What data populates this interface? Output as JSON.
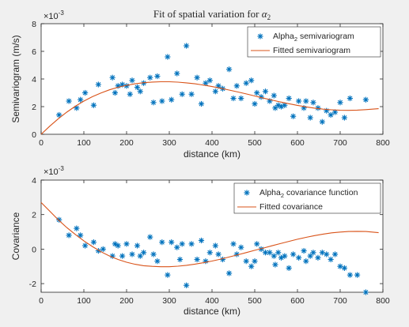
{
  "figure": {
    "background": "#f0f0f0",
    "axes_background": "#ffffff"
  },
  "chart_data": [
    {
      "type": "scatter",
      "title_prefix": "Fit of spatial variation for ",
      "title_symbol": "α",
      "title_subscript": "2",
      "xlabel": "distance (km)",
      "ylabel": "Semivariogram (m/s)",
      "exponent_prefix": "×10",
      "exponent_power": "-3",
      "xlim": [
        0,
        800
      ],
      "ylim": [
        0,
        8
      ],
      "xticks": [
        "0",
        "100",
        "200",
        "300",
        "400",
        "500",
        "600",
        "700",
        "800"
      ],
      "yticks": [
        "0",
        "2",
        "4",
        "6",
        "8"
      ],
      "legend_location": "top-right",
      "series": [
        {
          "name": "Alpha",
          "name_subscript": "2",
          "name_suffix": " semivariogram",
          "kind": "markers",
          "marker": "asterisk",
          "color": "#0072bd",
          "points": [
            [
              42,
              1.4
            ],
            [
              65,
              2.4
            ],
            [
              83,
              1.9
            ],
            [
              92,
              2.5
            ],
            [
              103,
              3.0
            ],
            [
              123,
              2.1
            ],
            [
              134,
              3.6
            ],
            [
              167,
              4.1
            ],
            [
              173,
              3.0
            ],
            [
              180,
              3.5
            ],
            [
              190,
              3.6
            ],
            [
              200,
              3.5
            ],
            [
              208,
              2.9
            ],
            [
              213,
              3.9
            ],
            [
              225,
              3.4
            ],
            [
              232,
              3.1
            ],
            [
              240,
              3.7
            ],
            [
              255,
              4.1
            ],
            [
              263,
              2.3
            ],
            [
              272,
              4.2
            ],
            [
              283,
              2.4
            ],
            [
              296,
              5.6
            ],
            [
              305,
              2.5
            ],
            [
              318,
              4.4
            ],
            [
              330,
              2.9
            ],
            [
              340,
              6.4
            ],
            [
              352,
              2.9
            ],
            [
              365,
              4.1
            ],
            [
              375,
              2.2
            ],
            [
              385,
              3.7
            ],
            [
              395,
              3.9
            ],
            [
              408,
              3.1
            ],
            [
              415,
              3.5
            ],
            [
              425,
              3.3
            ],
            [
              440,
              4.7
            ],
            [
              450,
              2.6
            ],
            [
              458,
              3.5
            ],
            [
              468,
              2.6
            ],
            [
              480,
              3.7
            ],
            [
              492,
              3.9
            ],
            [
              500,
              2.2
            ],
            [
              505,
              3.0
            ],
            [
              515,
              2.7
            ],
            [
              525,
              3.1
            ],
            [
              535,
              2.4
            ],
            [
              545,
              2.8
            ],
            [
              548,
              1.9
            ],
            [
              555,
              2.1
            ],
            [
              562,
              2.0
            ],
            [
              570,
              2.1
            ],
            [
              580,
              2.6
            ],
            [
              590,
              1.3
            ],
            [
              603,
              2.4
            ],
            [
              615,
              1.9
            ],
            [
              620,
              2.4
            ],
            [
              630,
              1.2
            ],
            [
              637,
              2.3
            ],
            [
              648,
              1.9
            ],
            [
              658,
              0.9
            ],
            [
              668,
              1.7
            ],
            [
              678,
              1.4
            ],
            [
              688,
              1.6
            ],
            [
              700,
              2.3
            ],
            [
              710,
              1.2
            ],
            [
              723,
              2.6
            ],
            [
              760,
              2.5
            ]
          ]
        },
        {
          "name": "Fitted semivariogram",
          "kind": "line",
          "color": "#d95319",
          "points": [
            [
              0,
              0
            ],
            [
              20,
              0.58
            ],
            [
              40,
              1.12
            ],
            [
              60,
              1.6
            ],
            [
              80,
              2.03
            ],
            [
              100,
              2.4
            ],
            [
              120,
              2.72
            ],
            [
              140,
              2.99
            ],
            [
              160,
              3.22
            ],
            [
              180,
              3.4
            ],
            [
              200,
              3.54
            ],
            [
              220,
              3.65
            ],
            [
              240,
              3.73
            ],
            [
              260,
              3.78
            ],
            [
              280,
              3.8
            ],
            [
              300,
              3.8
            ],
            [
              320,
              3.77
            ],
            [
              340,
              3.72
            ],
            [
              360,
              3.65
            ],
            [
              380,
              3.56
            ],
            [
              400,
              3.45
            ],
            [
              420,
              3.33
            ],
            [
              440,
              3.2
            ],
            [
              460,
              3.06
            ],
            [
              480,
              2.92
            ],
            [
              500,
              2.77
            ],
            [
              520,
              2.62
            ],
            [
              540,
              2.48
            ],
            [
              560,
              2.34
            ],
            [
              580,
              2.21
            ],
            [
              600,
              2.09
            ],
            [
              620,
              1.98
            ],
            [
              640,
              1.89
            ],
            [
              660,
              1.82
            ],
            [
              680,
              1.77
            ],
            [
              700,
              1.74
            ],
            [
              720,
              1.73
            ],
            [
              740,
              1.75
            ],
            [
              760,
              1.78
            ],
            [
              790,
              1.85
            ]
          ]
        }
      ]
    },
    {
      "type": "scatter",
      "title_prefix": "",
      "xlabel": "distance (km)",
      "ylabel": "Covariance",
      "exponent_prefix": "×10",
      "exponent_power": "-3",
      "xlim": [
        0,
        800
      ],
      "ylim": [
        -2.5,
        4
      ],
      "xticks": [
        "0",
        "100",
        "200",
        "300",
        "400",
        "500",
        "600",
        "700",
        "800"
      ],
      "yticks": [
        "-2",
        "0",
        "2",
        "4"
      ],
      "legend_location": "top-right",
      "series": [
        {
          "name": "Alpha",
          "name_subscript": "2",
          "name_suffix": " covariance function",
          "kind": "markers",
          "marker": "asterisk",
          "color": "#0072bd",
          "points": [
            [
              42,
              1.7
            ],
            [
              65,
              0.8
            ],
            [
              83,
              1.2
            ],
            [
              92,
              0.8
            ],
            [
              103,
              0.2
            ],
            [
              123,
              0.4
            ],
            [
              134,
              -0.1
            ],
            [
              145,
              0.0
            ],
            [
              167,
              -0.4
            ],
            [
              173,
              0.3
            ],
            [
              180,
              0.2
            ],
            [
              190,
              -0.4
            ],
            [
              200,
              0.3
            ],
            [
              213,
              -0.3
            ],
            [
              225,
              0.2
            ],
            [
              232,
              -0.4
            ],
            [
              240,
              -0.2
            ],
            [
              255,
              0.7
            ],
            [
              263,
              -0.3
            ],
            [
              272,
              -0.7
            ],
            [
              283,
              0.4
            ],
            [
              296,
              -1.5
            ],
            [
              305,
              0.4
            ],
            [
              318,
              0.1
            ],
            [
              325,
              -0.6
            ],
            [
              330,
              0.3
            ],
            [
              340,
              -2.1
            ],
            [
              352,
              0.3
            ],
            [
              365,
              -0.6
            ],
            [
              375,
              0.5
            ],
            [
              385,
              -0.7
            ],
            [
              395,
              -0.2
            ],
            [
              408,
              0.2
            ],
            [
              415,
              -0.3
            ],
            [
              425,
              -0.6
            ],
            [
              440,
              -1.4
            ],
            [
              450,
              0.3
            ],
            [
              458,
              -0.3
            ],
            [
              468,
              0.1
            ],
            [
              480,
              -0.7
            ],
            [
              492,
              -1.0
            ],
            [
              500,
              -0.7
            ],
            [
              505,
              0.3
            ],
            [
              515,
              0.0
            ],
            [
              525,
              -0.2
            ],
            [
              535,
              -0.2
            ],
            [
              545,
              -0.4
            ],
            [
              548,
              -0.9
            ],
            [
              555,
              -0.2
            ],
            [
              562,
              -0.5
            ],
            [
              570,
              -0.4
            ],
            [
              580,
              -1.1
            ],
            [
              590,
              -0.3
            ],
            [
              603,
              -0.5
            ],
            [
              615,
              -0.1
            ],
            [
              620,
              -0.7
            ],
            [
              630,
              -0.4
            ],
            [
              637,
              -0.2
            ],
            [
              648,
              -0.5
            ],
            [
              658,
              -0.2
            ],
            [
              668,
              -0.3
            ],
            [
              678,
              -0.6
            ],
            [
              688,
              -0.3
            ],
            [
              700,
              -1.0
            ],
            [
              710,
              -1.1
            ],
            [
              723,
              -1.5
            ],
            [
              740,
              -1.5
            ],
            [
              760,
              -2.5
            ]
          ]
        },
        {
          "name": "Fitted covariance",
          "kind": "line",
          "color": "#d95319",
          "points": [
            [
              0,
              2.7
            ],
            [
              20,
              2.2
            ],
            [
              40,
              1.7
            ],
            [
              60,
              1.25
            ],
            [
              80,
              0.85
            ],
            [
              100,
              0.48
            ],
            [
              120,
              0.15
            ],
            [
              140,
              -0.15
            ],
            [
              160,
              -0.4
            ],
            [
              180,
              -0.6
            ],
            [
              200,
              -0.76
            ],
            [
              220,
              -0.88
            ],
            [
              240,
              -0.96
            ],
            [
              260,
              -1.0
            ],
            [
              280,
              -1.02
            ],
            [
              300,
              -1.02
            ],
            [
              320,
              -0.99
            ],
            [
              340,
              -0.94
            ],
            [
              360,
              -0.87
            ],
            [
              380,
              -0.79
            ],
            [
              400,
              -0.69
            ],
            [
              420,
              -0.58
            ],
            [
              440,
              -0.46
            ],
            [
              460,
              -0.33
            ],
            [
              480,
              -0.2
            ],
            [
              500,
              -0.07
            ],
            [
              520,
              0.06
            ],
            [
              540,
              0.19
            ],
            [
              560,
              0.32
            ],
            [
              580,
              0.45
            ],
            [
              600,
              0.57
            ],
            [
              620,
              0.68
            ],
            [
              640,
              0.78
            ],
            [
              660,
              0.87
            ],
            [
              680,
              0.94
            ],
            [
              700,
              0.99
            ],
            [
              720,
              1.02
            ],
            [
              740,
              1.03
            ],
            [
              760,
              1.02
            ],
            [
              790,
              0.95
            ]
          ]
        }
      ]
    }
  ]
}
